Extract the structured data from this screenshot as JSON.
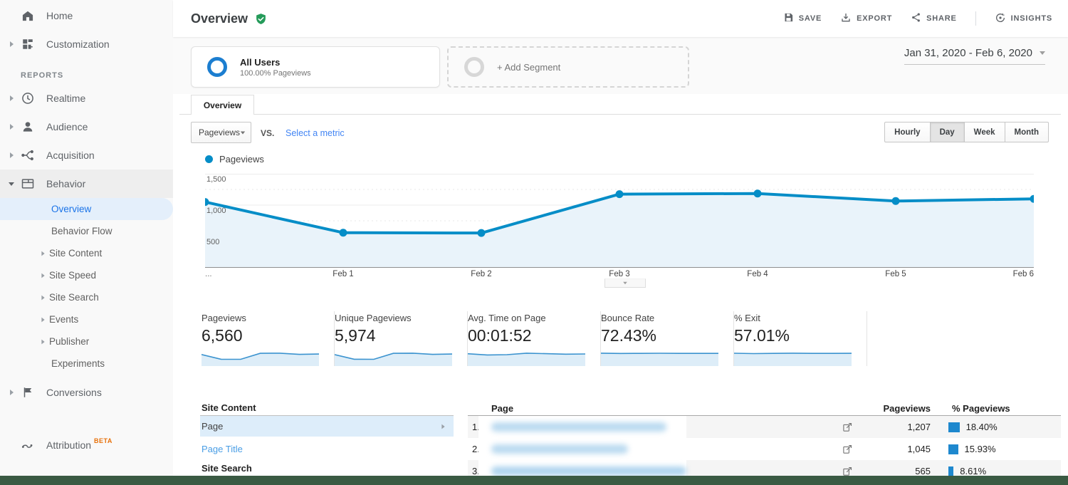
{
  "colors": {
    "chart_blue": "#058dc7",
    "chart_fill": "#e9f3fa",
    "link_blue": "#4285f4",
    "selected_nav_blue": "#1a73e8",
    "shield_green": "#259b5a",
    "beta_orange": "#e8710a",
    "bottom_bar_green": "#3a5a43",
    "table_bar_blue": "#1e88ce"
  },
  "sidebar": {
    "items": [
      {
        "label": "Home"
      },
      {
        "label": "Customization"
      },
      {
        "label": "REPORTS"
      },
      {
        "label": "Realtime"
      },
      {
        "label": "Audience"
      },
      {
        "label": "Acquisition"
      },
      {
        "label": "Behavior"
      },
      {
        "label": "Conversions"
      },
      {
        "label": "Attribution",
        "badge": "BETA"
      }
    ],
    "behavior_children": [
      {
        "label": "Overview",
        "selected": true
      },
      {
        "label": "Behavior Flow"
      },
      {
        "label": "Site Content"
      },
      {
        "label": "Site Speed"
      },
      {
        "label": "Site Search"
      },
      {
        "label": "Events"
      },
      {
        "label": "Publisher"
      },
      {
        "label": "Experiments"
      }
    ]
  },
  "header": {
    "title": "Overview",
    "actions": [
      {
        "label": "SAVE"
      },
      {
        "label": "EXPORT"
      },
      {
        "label": "SHARE"
      },
      {
        "label": "INSIGHTS"
      }
    ]
  },
  "segments": {
    "all_users_title": "All Users",
    "all_users_subtitle": "100.00% Pageviews",
    "add_segment_label": "+ Add Segment",
    "date_range": "Jan 31, 2020 - Feb 6, 2020"
  },
  "report_tab": "Overview",
  "controls": {
    "metric_dropdown": "Pageviews",
    "vs_label": "VS.",
    "select_metric_link": "Select a metric",
    "granularity": [
      "Hourly",
      "Day",
      "Week",
      "Month"
    ],
    "granularity_selected": "Day",
    "legend_label": "Pageviews"
  },
  "chart_data": {
    "type": "area",
    "title": "Pageviews by day",
    "x": [
      "Jan 31",
      "Feb 1",
      "Feb 2",
      "Feb 3",
      "Feb 4",
      "Feb 5",
      "Feb 6"
    ],
    "xtick_labels": [
      "...",
      "Feb 1",
      "Feb 2",
      "Feb 3",
      "Feb 4",
      "Feb 5",
      "Feb 6"
    ],
    "series": [
      {
        "name": "Pageviews",
        "values": [
          1050,
          560,
          555,
          1175,
          1185,
          1065,
          1100
        ]
      }
    ],
    "values_estimated": true,
    "ylim": [
      0,
      1500
    ],
    "yticks": [
      1500,
      1000,
      500
    ],
    "ytick_labels": [
      "1,500",
      "1,000",
      "500"
    ],
    "minor_gridlines": [
      1250,
      750,
      250
    ],
    "grid": true,
    "legend_position": "top-left",
    "line_color": "#058dc7",
    "fill_color": "#e9f3fa"
  },
  "scorecards": [
    {
      "label": "Pageviews",
      "value": "6,560",
      "spark": [
        1050,
        560,
        555,
        1175,
        1185,
        1065,
        1100
      ]
    },
    {
      "label": "Unique Pageviews",
      "value": "5,974",
      "spark": [
        950,
        510,
        505,
        1070,
        1080,
        970,
        1000
      ]
    },
    {
      "label": "Avg. Time on Page",
      "value": "00:01:52",
      "spark": [
        112,
        100,
        103,
        118,
        113,
        108,
        110
      ]
    },
    {
      "label": "Bounce Rate",
      "value": "72.43%",
      "spark": [
        73.5,
        71.8,
        72.3,
        73.0,
        72.2,
        72.1,
        72.4
      ]
    },
    {
      "label": "% Exit",
      "value": "57.01%",
      "spark": [
        57.5,
        55.8,
        56.9,
        57.8,
        56.8,
        56.7,
        57.1
      ]
    }
  ],
  "site_content_panel": {
    "header": "Site Content",
    "items": [
      {
        "label": "Page",
        "selected": true
      },
      {
        "label": "Page Title"
      }
    ],
    "next_header": "Site Search"
  },
  "table": {
    "columns": [
      "Page",
      "Pageviews",
      "% Pageviews"
    ],
    "rows": [
      {
        "rank": "1.",
        "page_blurred": true,
        "pageviews": "1,207",
        "pct": "18.40%",
        "pct_value": 18.4
      },
      {
        "rank": "2.",
        "page_blurred": true,
        "pageviews": "1,045",
        "pct": "15.93%",
        "pct_value": 15.93
      },
      {
        "rank": "3.",
        "page_blurred": true,
        "pageviews": "565",
        "pct": "8.61%",
        "pct_value": 8.61
      }
    ]
  }
}
